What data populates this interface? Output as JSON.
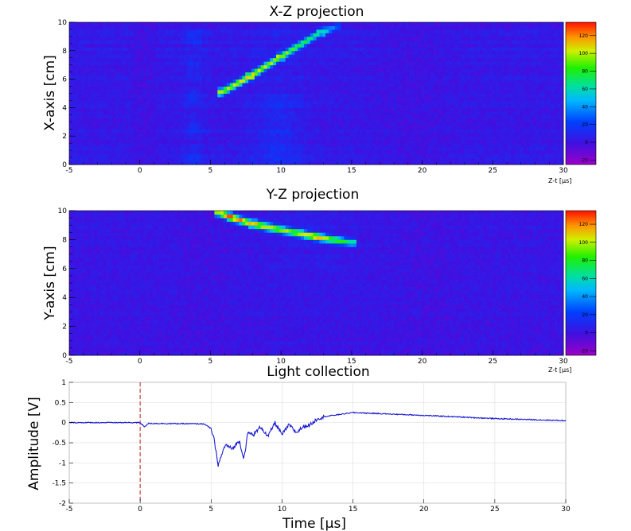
{
  "chart_data": [
    {
      "type": "heatmap",
      "id": "xz",
      "title": "X-Z projection",
      "xlabel": "Z-t [µs]",
      "ylabel": "X-axis [cm]",
      "xlim": [
        -5,
        30
      ],
      "ylim": [
        0,
        10
      ],
      "xticks": [
        "-5",
        "0",
        "5",
        "10",
        "15",
        "20",
        "25",
        "30"
      ],
      "yticks": [
        "0",
        "2",
        "4",
        "6",
        "8",
        "10"
      ],
      "colorbar": {
        "zlim": [
          -25,
          135
        ],
        "ticks": [
          "-20",
          "0",
          "20",
          "40",
          "60",
          "80",
          "100",
          "120"
        ]
      },
      "track": [
        {
          "t": 5.8,
          "pos": 5.1,
          "amp": 100
        },
        {
          "t": 7.8,
          "pos": 6.2,
          "amp": 110
        },
        {
          "t": 10.0,
          "pos": 7.6,
          "amp": 95
        },
        {
          "t": 12.8,
          "pos": 9.3,
          "amp": 65
        },
        {
          "t": 14.0,
          "pos": 9.7,
          "amp": 25
        }
      ]
    },
    {
      "type": "heatmap",
      "id": "yz",
      "title": "Y-Z projection",
      "xlabel": "Z-t [µs]",
      "ylabel": "Y-axis [cm]",
      "xlim": [
        -5,
        30
      ],
      "ylim": [
        0,
        10
      ],
      "xticks": [
        "-5",
        "0",
        "5",
        "10",
        "15",
        "20",
        "25",
        "30"
      ],
      "yticks": [
        "0",
        "2",
        "4",
        "6",
        "8",
        "10"
      ],
      "colorbar": {
        "zlim": [
          -25,
          135
        ],
        "ticks": [
          "-20",
          "0",
          "20",
          "40",
          "60",
          "80",
          "100",
          "120"
        ]
      },
      "track": [
        {
          "t": 5.6,
          "pos": 9.9,
          "amp": 100
        },
        {
          "t": 6.3,
          "pos": 9.6,
          "amp": 130
        },
        {
          "t": 8.0,
          "pos": 9.1,
          "amp": 110
        },
        {
          "t": 10.5,
          "pos": 8.6,
          "amp": 95
        },
        {
          "t": 12.5,
          "pos": 8.2,
          "amp": 115
        },
        {
          "t": 15.0,
          "pos": 7.8,
          "amp": 65
        }
      ]
    },
    {
      "type": "line",
      "id": "light",
      "title": "Light collection",
      "xlabel": "Time [µs]",
      "ylabel": "Amplitude [V]",
      "xlim": [
        -5,
        30
      ],
      "ylim": [
        -2,
        1
      ],
      "xticks": [
        "-5",
        "0",
        "5",
        "10",
        "15",
        "20",
        "25",
        "30"
      ],
      "yticks": [
        "-2",
        "-1.5",
        "-1",
        "-0.5",
        "0",
        "0.5",
        "1"
      ],
      "marker_x": 0,
      "x": [
        -5,
        0,
        0.3,
        0.6,
        4.5,
        5.0,
        5.2,
        5.5,
        6.0,
        6.5,
        7.0,
        7.3,
        7.6,
        8.0,
        8.5,
        9.0,
        9.5,
        10.0,
        10.5,
        11.0,
        11.5,
        12.0,
        12.5,
        13.0,
        14.0,
        15.0,
        20.0,
        25.0,
        30.0
      ],
      "y": [
        0.0,
        0.0,
        -0.1,
        -0.02,
        -0.03,
        -0.15,
        -0.4,
        -1.05,
        -0.55,
        -0.65,
        -0.45,
        -0.9,
        -0.25,
        -0.3,
        -0.1,
        -0.35,
        0.0,
        -0.3,
        -0.05,
        -0.25,
        -0.1,
        -0.05,
        0.1,
        0.15,
        0.2,
        0.25,
        0.18,
        0.1,
        0.05
      ]
    }
  ]
}
